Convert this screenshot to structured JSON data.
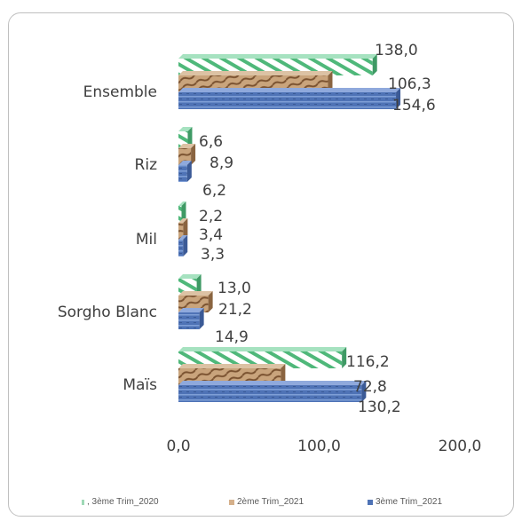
{
  "chart_data": {
    "type": "bar",
    "orientation": "horizontal",
    "categories": [
      "Ensemble",
      "Riz",
      "Mil",
      "Sorgho Blanc",
      "Maïs"
    ],
    "series": [
      {
        "name": "3ème Trim_2020",
        "values": [
          138.0,
          6.6,
          2.2,
          13.0,
          116.2
        ],
        "labels": [
          "138,0",
          "6,6",
          "2,2",
          "13,0",
          "116,2"
        ],
        "color": "#5fc48a"
      },
      {
        "name": "2ème Trim_2021",
        "values": [
          106.3,
          8.9,
          3.4,
          21.2,
          72.8
        ],
        "labels": [
          "106,3",
          "8,9",
          "3,4",
          "21,2",
          "72,8"
        ],
        "color": "#b8875a"
      },
      {
        "name": "3ème Trim_2021",
        "values": [
          154.6,
          6.2,
          3.3,
          14.9,
          130.2
        ],
        "labels": [
          "154,6",
          "6,2",
          "3,3",
          "14,9",
          "130,2"
        ],
        "color": "#4f73b6"
      }
    ],
    "xticks": [
      "0,0",
      "100,0",
      "200,0"
    ],
    "xtick_values": [
      0,
      100,
      200
    ],
    "xlim": [
      0,
      200
    ],
    "grid": false,
    "legend_position": "bottom",
    "legend_labels": [
      ", 3ème Trim_2020",
      "2ème Trim_2021",
      "3ème Trim_2021"
    ]
  }
}
